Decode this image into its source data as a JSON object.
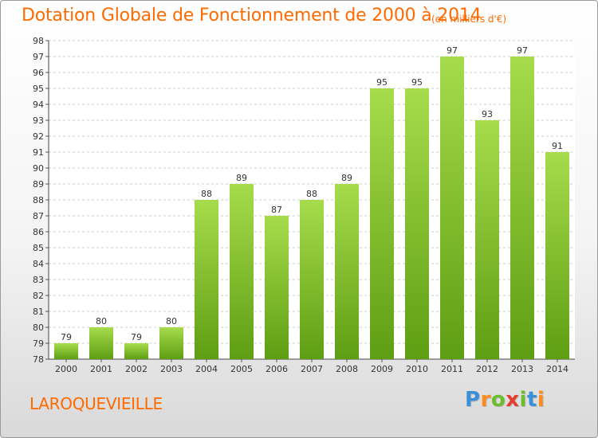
{
  "title": "Dotation Globale de Fonctionnement de 2000 à 2014",
  "subtitle": "(en milliers d'€)",
  "commune": "LAROQUEVIEILLE",
  "logo_text": "Proxiti",
  "colors": {
    "title": "#ff6a00",
    "bar_light": "#a6dc4c",
    "bar_dark": "#5e9e12",
    "grid": "#cccccc"
  },
  "chart_data": {
    "type": "bar",
    "categories": [
      "2000",
      "2001",
      "2002",
      "2003",
      "2004",
      "2005",
      "2006",
      "2007",
      "2008",
      "2009",
      "2010",
      "2011",
      "2012",
      "2013",
      "2014"
    ],
    "values": [
      79,
      80,
      79,
      80,
      88,
      89,
      87,
      88,
      89,
      95,
      95,
      97,
      93,
      97,
      91
    ],
    "ylim": [
      78,
      98
    ],
    "yticks": [
      78,
      79,
      80,
      81,
      82,
      83,
      84,
      85,
      86,
      87,
      88,
      89,
      90,
      91,
      92,
      93,
      94,
      95,
      96,
      97,
      98
    ],
    "grid": true,
    "data_labels": true
  }
}
